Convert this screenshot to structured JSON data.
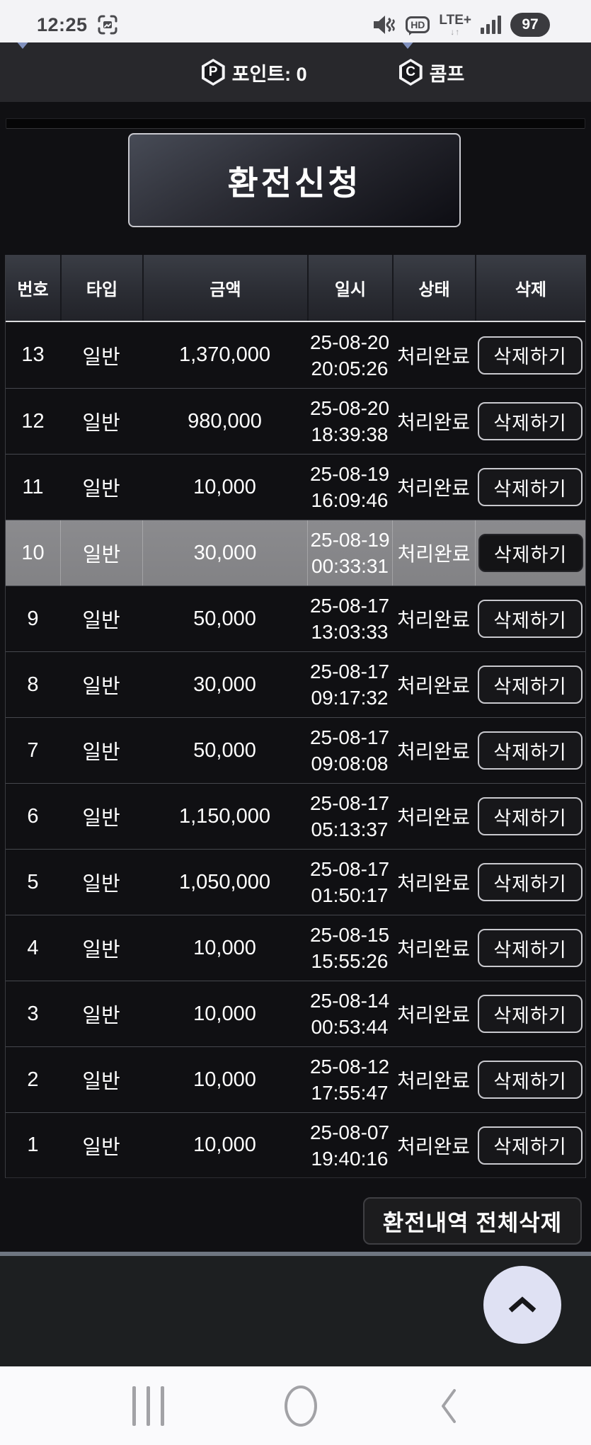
{
  "status_bar": {
    "time": "12:25",
    "screenshot_icon": "screenshot-icon",
    "mute_icon": "mute-vibrate-icon",
    "hd_label": "HD",
    "network_label": "LTE+",
    "data_arrows": "↓↑",
    "signal_icon": "signal-strength-icon",
    "battery_percent": "97"
  },
  "wallet_bar": {
    "point_badge": "P",
    "point_label": "포인트: 0",
    "comp_badge": "C",
    "comp_label": "콤프"
  },
  "exchange_button_label": "환전신청",
  "table": {
    "columns": [
      "번호",
      "타입",
      "금액",
      "일시",
      "상태",
      "삭제"
    ],
    "delete_label": "삭제하기",
    "rows": [
      {
        "no": "13",
        "type": "일반",
        "amount": "1,370,000",
        "date": "25-08-20",
        "time": "20:05:26",
        "status": "처리완료",
        "highlighted": false
      },
      {
        "no": "12",
        "type": "일반",
        "amount": "980,000",
        "date": "25-08-20",
        "time": "18:39:38",
        "status": "처리완료",
        "highlighted": false
      },
      {
        "no": "11",
        "type": "일반",
        "amount": "10,000",
        "date": "25-08-19",
        "time": "16:09:46",
        "status": "처리완료",
        "highlighted": false
      },
      {
        "no": "10",
        "type": "일반",
        "amount": "30,000",
        "date": "25-08-19",
        "time": "00:33:31",
        "status": "처리완료",
        "highlighted": true
      },
      {
        "no": "9",
        "type": "일반",
        "amount": "50,000",
        "date": "25-08-17",
        "time": "13:03:33",
        "status": "처리완료",
        "highlighted": false
      },
      {
        "no": "8",
        "type": "일반",
        "amount": "30,000",
        "date": "25-08-17",
        "time": "09:17:32",
        "status": "처리완료",
        "highlighted": false
      },
      {
        "no": "7",
        "type": "일반",
        "amount": "50,000",
        "date": "25-08-17",
        "time": "09:08:08",
        "status": "처리완료",
        "highlighted": false
      },
      {
        "no": "6",
        "type": "일반",
        "amount": "1,150,000",
        "date": "25-08-17",
        "time": "05:13:37",
        "status": "처리완료",
        "highlighted": false
      },
      {
        "no": "5",
        "type": "일반",
        "amount": "1,050,000",
        "date": "25-08-17",
        "time": "01:50:17",
        "status": "처리완료",
        "highlighted": false
      },
      {
        "no": "4",
        "type": "일반",
        "amount": "10,000",
        "date": "25-08-15",
        "time": "15:55:26",
        "status": "처리완료",
        "highlighted": false
      },
      {
        "no": "3",
        "type": "일반",
        "amount": "10,000",
        "date": "25-08-14",
        "time": "00:53:44",
        "status": "처리완료",
        "highlighted": false
      },
      {
        "no": "2",
        "type": "일반",
        "amount": "10,000",
        "date": "25-08-12",
        "time": "17:55:47",
        "status": "처리완료",
        "highlighted": false
      },
      {
        "no": "1",
        "type": "일반",
        "amount": "10,000",
        "date": "25-08-07",
        "time": "19:40:16",
        "status": "처리완료",
        "highlighted": false
      }
    ]
  },
  "footer": {
    "delete_all_label": "환전내역 전체삭제"
  },
  "scroll_top": {
    "icon": "chevron-up-icon"
  },
  "nav_bar": {
    "recents": "recents-icon",
    "home": "home-icon",
    "back": "back-icon"
  },
  "colors": {
    "row_highlight": "#88888b",
    "scroll_top_bg": "#dfe1f3",
    "divider": "#6e7580",
    "header_underline": "#dcdcde",
    "peek_chevron_blue": "#8b9cce",
    "status_bar_bg": "#f3f3f6",
    "wallet_bar_bg": "#28282c"
  }
}
